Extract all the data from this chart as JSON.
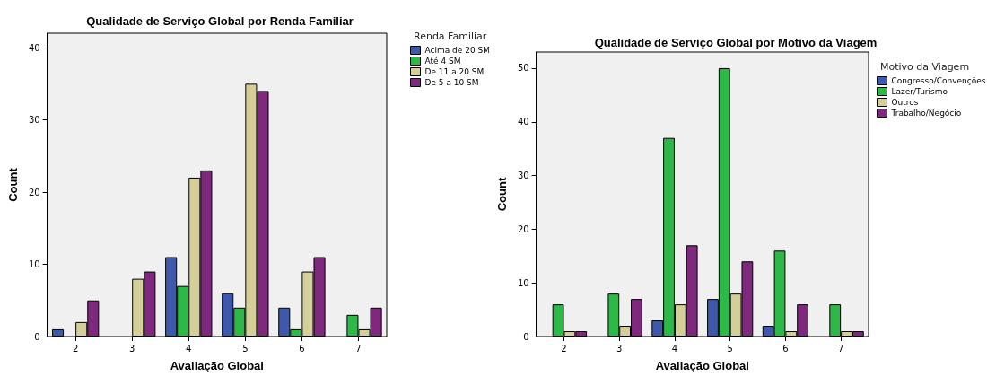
{
  "chart_data": [
    {
      "type": "bar",
      "title": "Qualidade de Serviço Global por Renda Familiar",
      "xlabel": "Avaliação Global",
      "ylabel": "Count",
      "legend_title": "Renda Familiar",
      "categories": [
        "2",
        "3",
        "4",
        "5",
        "6",
        "7"
      ],
      "series": [
        {
          "name": "Acima de 20 SM",
          "color": "#3e58ac",
          "values": [
            1,
            null,
            11,
            6,
            4,
            null
          ]
        },
        {
          "name": "Até 4 SM",
          "color": "#2eb848",
          "values": [
            null,
            null,
            7,
            4,
            1,
            3
          ]
        },
        {
          "name": "De 11 a 20 SM",
          "color": "#d4ce99",
          "values": [
            2,
            8,
            22,
            35,
            9,
            1
          ]
        },
        {
          "name": "De 5 a 10 SM",
          "color": "#7e287e",
          "values": [
            5,
            9,
            23,
            34,
            11,
            4
          ]
        }
      ],
      "ylim": [
        0,
        42
      ],
      "yticks": [
        0,
        10,
        20,
        30,
        40
      ],
      "grid": false,
      "legend": "top right"
    },
    {
      "type": "bar",
      "title": "Qualidade de Serviço Global por Motivo da Viagem",
      "xlabel": "Avaliação Global",
      "ylabel": "Count",
      "legend_title": "Motivo da Viagem",
      "categories": [
        "2",
        "3",
        "4",
        "5",
        "6",
        "7"
      ],
      "series": [
        {
          "name": "Congresso/Convenções",
          "color": "#3e58ac",
          "values": [
            null,
            null,
            3,
            7,
            2,
            null
          ]
        },
        {
          "name": "Lazer/Turismo",
          "color": "#2eb848",
          "values": [
            6,
            8,
            37,
            50,
            16,
            6
          ]
        },
        {
          "name": "Outros",
          "color": "#d4ce99",
          "values": [
            1,
            2,
            6,
            8,
            1,
            1
          ]
        },
        {
          "name": "Trabalho/Negócio",
          "color": "#7e287e",
          "values": [
            1,
            7,
            17,
            14,
            6,
            1
          ]
        }
      ],
      "ylim": [
        0,
        53
      ],
      "yticks": [
        0,
        10,
        20,
        30,
        40,
        50
      ],
      "grid": false,
      "legend": "top right"
    }
  ]
}
